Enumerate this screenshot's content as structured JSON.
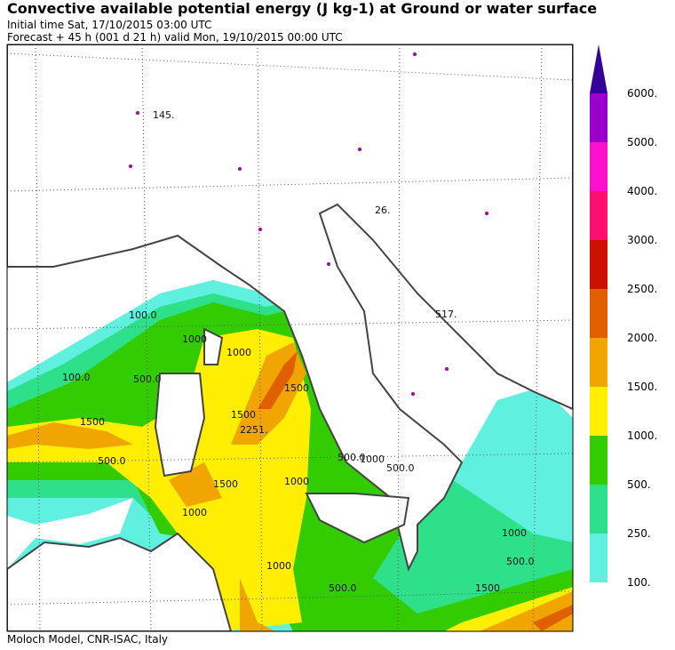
{
  "header": {
    "title": "Convective available potential energy (J kg-1) at Ground or water surface",
    "initial_time": "Initial time  Sat, 17/10/2015  03:00 UTC",
    "forecast": "Forecast  +  45 h  (001 d 21 h)  valid Mon, 19/10/2015 00:00 UTC"
  },
  "contour_labels": [
    "145.",
    "26.",
    "517.",
    "100.0",
    "100.0",
    "1500",
    "500.0",
    "2251.",
    "1500",
    "1000",
    "1500",
    "1000",
    "500.0",
    "1000",
    "1000",
    "500.0",
    "1000",
    "1500",
    "1000",
    "500.0",
    "500.0",
    "1000",
    "1500",
    "500.0"
  ],
  "legend": {
    "top_color": "#330099",
    "levels": [
      {
        "label": "100.",
        "color": "#5ff0e0"
      },
      {
        "label": "250.",
        "color": "#2ee08a"
      },
      {
        "label": "500.",
        "color": "#33cc00"
      },
      {
        "label": "1000.",
        "color": "#ffee00"
      },
      {
        "label": "1500.",
        "color": "#f0a500"
      },
      {
        "label": "2000.",
        "color": "#e06000"
      },
      {
        "label": "2500.",
        "color": "#cc1100"
      },
      {
        "label": "3000.",
        "color": "#ff1070"
      },
      {
        "label": "4000.",
        "color": "#ff10cc"
      },
      {
        "label": "5000.",
        "color": "#9900cc"
      },
      {
        "label": "6000.",
        "color": null
      }
    ]
  },
  "footer": "Moloch Model, CNR-ISAC, Italy"
}
